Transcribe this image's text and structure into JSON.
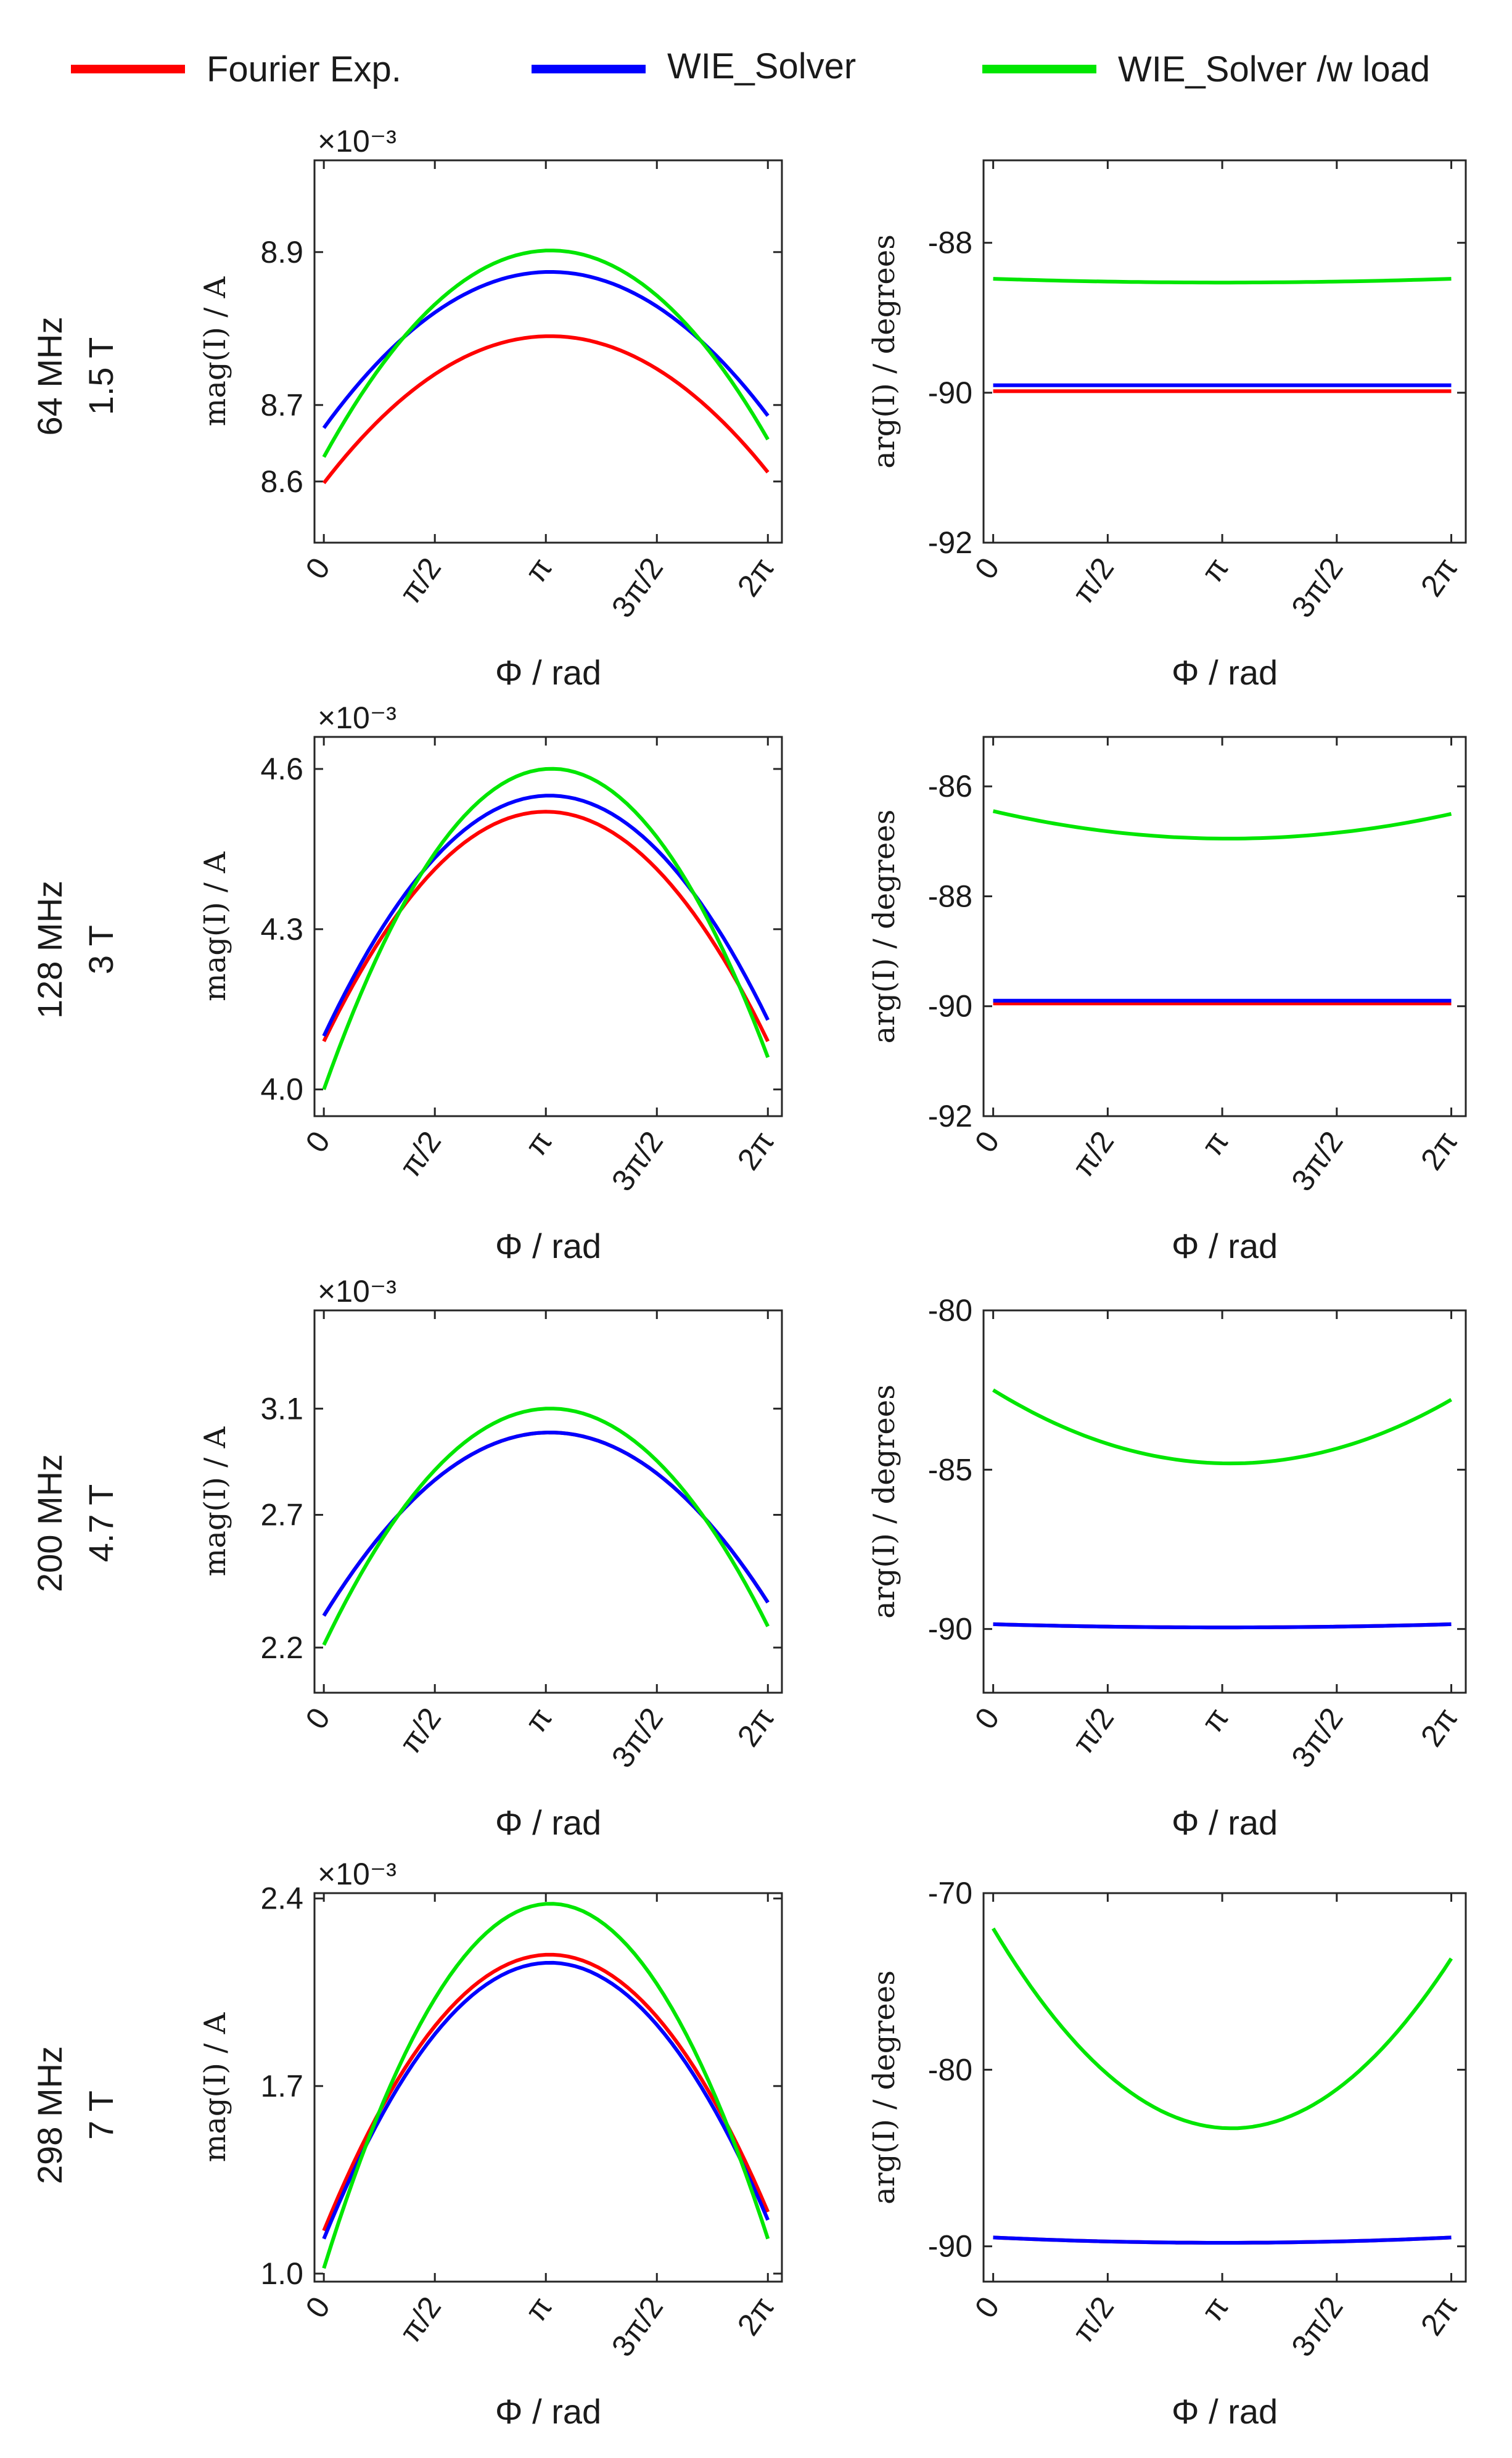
{
  "legend": [
    {
      "label": "Fourier Exp.",
      "color": "#ff0000"
    },
    {
      "label": "WIE_Solver",
      "color": "#0000ff"
    },
    {
      "label": "WIE_Solver /w load",
      "color": "#00e600"
    }
  ],
  "colors": {
    "fourier": "#ff0000",
    "wie": "#0000ff",
    "wie_load": "#00e600",
    "axis": "#262626"
  },
  "rows": [
    {
      "freq": "64 MHz",
      "field": "1.5 T"
    },
    {
      "freq": "128 MHz",
      "field": "3 T"
    },
    {
      "freq": "200 MHz",
      "field": "4.7 T"
    },
    {
      "freq": "298 MHz",
      "field": "7 T"
    }
  ],
  "chart_data": [
    {
      "type": "line",
      "row": 0,
      "quantity": "magnitude",
      "xlabel": "Φ / rad",
      "ylabel": "mag(I) / A",
      "exponent": "×10⁻³",
      "xticks": [
        "0",
        "π/2",
        "π",
        "3π/2",
        "2π"
      ],
      "ylim": [
        8.52,
        9.02
      ],
      "yticks": [
        8.6,
        8.7,
        8.9
      ],
      "ytick_labels": [
        "8.6",
        "8.7",
        "8.9"
      ],
      "x_range": [
        0,
        6.2832
      ],
      "grid": false,
      "series": [
        {
          "name": "Fourier Exp.",
          "ends": [
            8.598,
            8.612
          ],
          "peak": 8.79
        },
        {
          "name": "WIE_Solver",
          "ends": [
            8.67,
            8.686
          ],
          "peak": 8.874
        },
        {
          "name": "WIE_Solver /w load",
          "ends": [
            8.632,
            8.655
          ],
          "peak": 8.902
        }
      ]
    },
    {
      "type": "line",
      "row": 0,
      "quantity": "phase",
      "xlabel": "Φ / rad",
      "ylabel": "arg(I) / degrees",
      "xticks": [
        "0",
        "π/2",
        "π",
        "3π/2",
        "2π"
      ],
      "ylim": [
        -92,
        -86.9
      ],
      "yticks": [
        -92,
        -90,
        -88
      ],
      "ytick_labels": [
        "-92",
        "-90",
        "-88"
      ],
      "x_range": [
        0,
        6.2832
      ],
      "grid": false,
      "series": [
        {
          "name": "Fourier Exp.",
          "ends": [
            -89.98,
            -89.98
          ],
          "peak": -89.98
        },
        {
          "name": "WIE_Solver",
          "ends": [
            -89.9,
            -89.9
          ],
          "peak": -89.9
        },
        {
          "name": "WIE_Solver /w load",
          "ends": [
            -88.48,
            -88.48
          ],
          "peak": -88.53
        }
      ]
    },
    {
      "type": "line",
      "row": 1,
      "quantity": "magnitude",
      "xlabel": "Φ / rad",
      "ylabel": "mag(I) / A",
      "exponent": "×10⁻³",
      "xticks": [
        "0",
        "π/2",
        "π",
        "3π/2",
        "2π"
      ],
      "ylim": [
        3.95,
        4.66
      ],
      "yticks": [
        4.0,
        4.3,
        4.6
      ],
      "ytick_labels": [
        "4.0",
        "4.3",
        "4.6"
      ],
      "x_range": [
        0,
        6.2832
      ],
      "grid": false,
      "series": [
        {
          "name": "Fourier Exp.",
          "ends": [
            4.09,
            4.09
          ],
          "peak": 4.52
        },
        {
          "name": "WIE_Solver",
          "ends": [
            4.1,
            4.13
          ],
          "peak": 4.55
        },
        {
          "name": "WIE_Solver /w load",
          "ends": [
            4.0,
            4.06
          ],
          "peak": 4.6
        }
      ]
    },
    {
      "type": "line",
      "row": 1,
      "quantity": "phase",
      "xlabel": "Φ / rad",
      "ylabel": "arg(I) / degrees",
      "xticks": [
        "0",
        "π/2",
        "π",
        "3π/2",
        "2π"
      ],
      "ylim": [
        -92,
        -85.1
      ],
      "yticks": [
        -92,
        -90,
        -88,
        -86
      ],
      "ytick_labels": [
        "-92",
        "-90",
        "-88",
        "-86"
      ],
      "x_range": [
        0,
        6.2832
      ],
      "grid": false,
      "series": [
        {
          "name": "Fourier Exp.",
          "ends": [
            -89.95,
            -89.95
          ],
          "peak": -89.95
        },
        {
          "name": "WIE_Solver",
          "ends": [
            -89.9,
            -89.9
          ],
          "peak": -89.9
        },
        {
          "name": "WIE_Solver /w load",
          "ends": [
            -86.45,
            -86.5
          ],
          "peak": -86.95
        }
      ]
    },
    {
      "type": "line",
      "row": 2,
      "quantity": "magnitude",
      "xlabel": "Φ / rad",
      "ylabel": "mag(I) / A",
      "exponent": "×10⁻³",
      "xticks": [
        "0",
        "π/2",
        "π",
        "3π/2",
        "2π"
      ],
      "ylim": [
        2.03,
        3.47
      ],
      "yticks": [
        2.2,
        2.7,
        3.1
      ],
      "ytick_labels": [
        "2.2",
        "2.7",
        "3.1"
      ],
      "x_range": [
        0,
        6.2832
      ],
      "grid": false,
      "series": [
        {
          "name": "Fourier Exp.",
          "ends": [
            2.32,
            2.37
          ],
          "peak": 3.01
        },
        {
          "name": "WIE_Solver",
          "ends": [
            2.32,
            2.37
          ],
          "peak": 3.01
        },
        {
          "name": "WIE_Solver /w load",
          "ends": [
            2.21,
            2.28
          ],
          "peak": 3.1
        }
      ]
    },
    {
      "type": "line",
      "row": 2,
      "quantity": "phase",
      "xlabel": "Φ / rad",
      "ylabel": "arg(I) / degrees",
      "xticks": [
        "0",
        "π/2",
        "π",
        "3π/2",
        "2π"
      ],
      "ylim": [
        -92,
        -80
      ],
      "yticks": [
        -90,
        -85,
        -80
      ],
      "ytick_labels": [
        "-90",
        "-85",
        "-80"
      ],
      "x_range": [
        0,
        6.2832
      ],
      "grid": false,
      "series": [
        {
          "name": "Fourier Exp.",
          "ends": [
            -89.85,
            -89.85
          ],
          "peak": -89.95
        },
        {
          "name": "WIE_Solver",
          "ends": [
            -89.85,
            -89.85
          ],
          "peak": -89.95
        },
        {
          "name": "WIE_Solver /w load",
          "ends": [
            -82.5,
            -82.8
          ],
          "peak": -84.8
        }
      ]
    },
    {
      "type": "line",
      "row": 3,
      "quantity": "magnitude",
      "xlabel": "Φ / rad",
      "ylabel": "mag(I) / A",
      "exponent": "×10⁻³",
      "xticks": [
        "0",
        "π/2",
        "π",
        "3π/2",
        "2π"
      ],
      "ylim": [
        0.97,
        2.42
      ],
      "yticks": [
        1.0,
        1.7,
        2.4
      ],
      "ytick_labels": [
        "1.0",
        "1.7",
        "2.4"
      ],
      "x_range": [
        0,
        6.2832
      ],
      "grid": false,
      "series": [
        {
          "name": "Fourier Exp.",
          "ends": [
            1.16,
            1.23
          ],
          "peak": 2.19
        },
        {
          "name": "WIE_Solver",
          "ends": [
            1.13,
            1.2
          ],
          "peak": 2.16
        },
        {
          "name": "WIE_Solver /w load",
          "ends": [
            1.02,
            1.13
          ],
          "peak": 2.38
        }
      ]
    },
    {
      "type": "line",
      "row": 3,
      "quantity": "phase",
      "xlabel": "Φ / rad",
      "ylabel": "arg(I) / degrees",
      "xticks": [
        "0",
        "π/2",
        "π",
        "3π/2",
        "2π"
      ],
      "ylim": [
        -92,
        -70
      ],
      "yticks": [
        -90,
        -80,
        -70
      ],
      "ytick_labels": [
        "-90",
        "-80",
        "-70"
      ],
      "x_range": [
        0,
        6.2832
      ],
      "grid": false,
      "series": [
        {
          "name": "Fourier Exp.",
          "ends": [
            -89.5,
            -89.5
          ],
          "peak": -89.8
        },
        {
          "name": "WIE_Solver",
          "ends": [
            -89.5,
            -89.5
          ],
          "peak": -89.8
        },
        {
          "name": "WIE_Solver /w load",
          "ends": [
            -72.0,
            -73.7
          ],
          "peak": -83.3
        }
      ]
    }
  ]
}
